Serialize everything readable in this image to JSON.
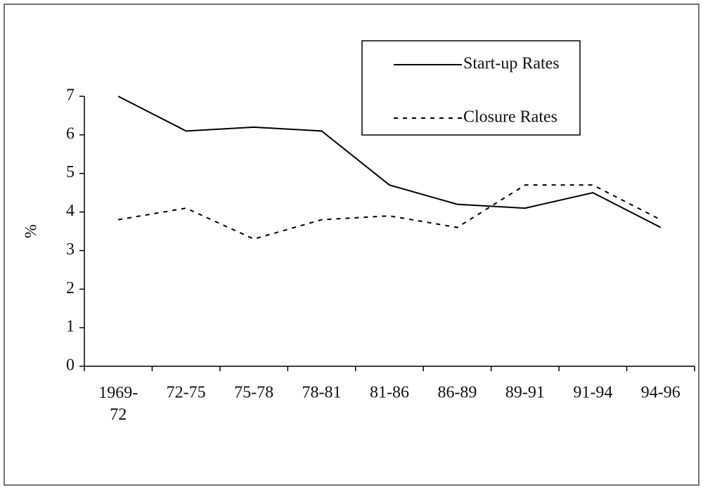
{
  "chart_data": {
    "type": "line",
    "y_label": "%",
    "categories": [
      "1969-72",
      "72-75",
      "75-78",
      "78-81",
      "81-86",
      "86-89",
      "89-91",
      "91-94",
      "94-96"
    ],
    "series": [
      {
        "name": "Start-up Rates",
        "color": "#000000",
        "dash": "solid",
        "values": [
          7,
          6.1,
          6.2,
          6.1,
          4.7,
          4.2,
          4.1,
          4.5,
          3.6
        ]
      },
      {
        "name": "Closure Rates",
        "color": "#000000",
        "dash": "dotted",
        "values": [
          3.8,
          4.1,
          3.3,
          3.8,
          3.9,
          3.6,
          4.7,
          4.7,
          3.8
        ]
      }
    ],
    "ylim": [
      0,
      7
    ],
    "yticks": [
      0,
      1,
      2,
      3,
      4,
      5,
      6,
      7
    ],
    "grid": false,
    "legend": "top-right"
  }
}
